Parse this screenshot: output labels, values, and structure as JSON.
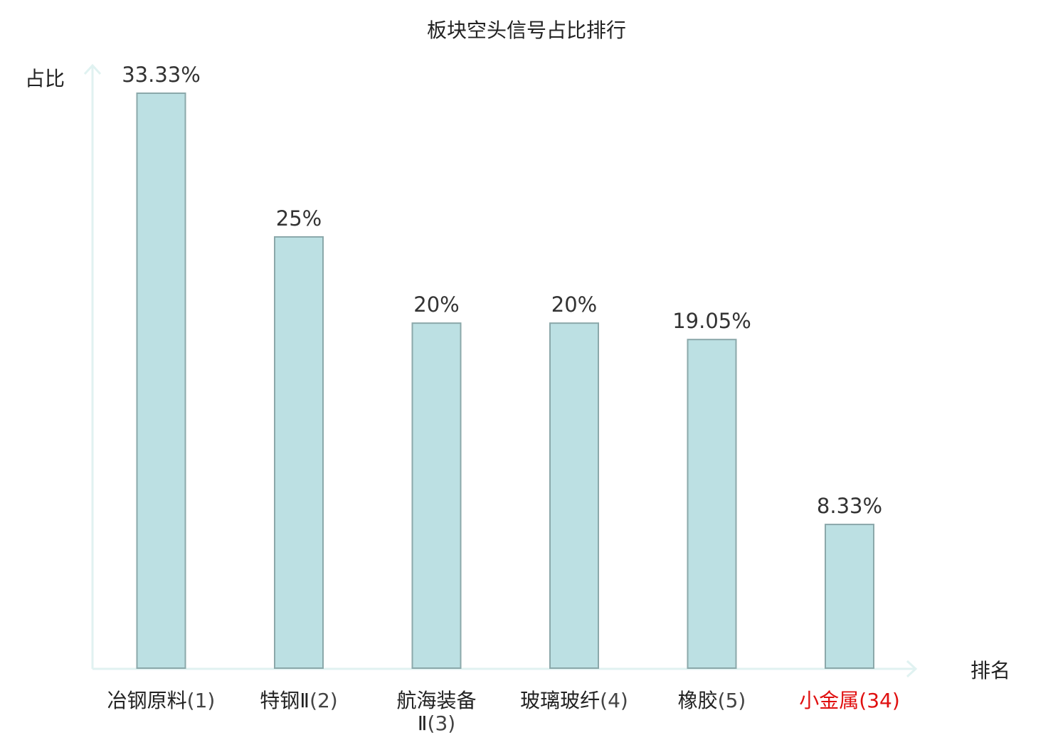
{
  "chart_data": {
    "type": "bar",
    "title": "板块空头信号占比排行",
    "xlabel": "排名",
    "ylabel": "占比",
    "categories": [
      {
        "name_lines": [
          "冶钢原料"
        ],
        "rank": "(1)",
        "highlight": false
      },
      {
        "name_lines": [
          "特钢Ⅱ"
        ],
        "rank": "(2)",
        "highlight": false
      },
      {
        "name_lines": [
          "航海装备",
          "Ⅱ"
        ],
        "rank": "(3)",
        "highlight": false
      },
      {
        "name_lines": [
          "玻璃玻纤"
        ],
        "rank": "(4)",
        "highlight": false
      },
      {
        "name_lines": [
          "橡胶"
        ],
        "rank": "(5)",
        "highlight": false
      },
      {
        "name_lines": [
          "小金属"
        ],
        "rank": "(34)",
        "highlight": true
      }
    ],
    "values": [
      33.33,
      25,
      20,
      20,
      19.05,
      8.33
    ],
    "value_labels": [
      "33.33%",
      "25%",
      "20%",
      "20%",
      "19.05%",
      "8.33%"
    ],
    "ylim": [
      0,
      35
    ],
    "grid": false,
    "colors": {
      "bar_fill": "#bce0e3",
      "bar_stroke": "#8ba8aa",
      "axis": "#e0f2f1",
      "text": "#222222",
      "label_text": "#333333",
      "highlight_text": "#e01010"
    }
  }
}
